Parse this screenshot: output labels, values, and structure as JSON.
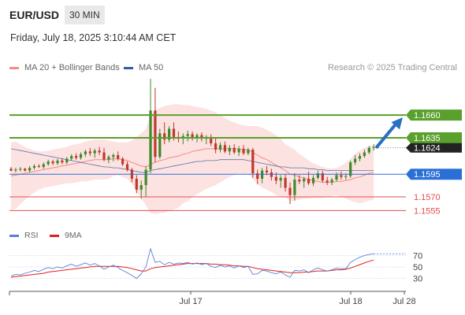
{
  "header": {
    "symbol": "EUR/USD",
    "timeframe": "30 MIN",
    "timestamp": "Friday, July 18, 2025 3:10:44 AM CET"
  },
  "legend": {
    "items": [
      {
        "label": "MA 20 + Bollinger Bands",
        "color": "#f28b82"
      },
      {
        "label": "MA 50",
        "color": "#2d5d9f"
      }
    ],
    "research": "Research © 2025 Trading Central"
  },
  "rsi_legend": {
    "items": [
      {
        "label": "RSI",
        "color": "#5b7fd6"
      },
      {
        "label": "9MA",
        "color": "#e02020"
      }
    ]
  },
  "chart_data": {
    "type": "candlestick",
    "symbol": "EUR/USD",
    "price_axis": {
      "min": 1.1538,
      "max": 1.17
    },
    "current_price": {
      "value": 1.1624,
      "label": "1.1624"
    },
    "levels": [
      {
        "value": 1.166,
        "label": "1.1660",
        "kind": "resistance",
        "color": "#5aa02c",
        "label_bg": true
      },
      {
        "value": 1.1635,
        "label": "1.1635",
        "kind": "resistance",
        "color": "#5aa02c",
        "label_bg": true
      },
      {
        "value": 1.1595,
        "label": "1.1595",
        "kind": "pivot",
        "color": "#2a6fd6",
        "label_bg": true
      },
      {
        "value": 1.157,
        "label": "1.1570",
        "kind": "support",
        "color": "#e34d4d",
        "label_bg": false
      },
      {
        "value": 1.1555,
        "label": "1.1555",
        "kind": "support",
        "color": "#e34d4d",
        "label_bg": false
      }
    ],
    "x_ticks": [
      "Jul 17",
      "Jul 18",
      "Jul 28"
    ],
    "rsi": {
      "ticks": [
        70,
        50,
        30
      ],
      "range": [
        10,
        90
      ]
    },
    "candles": [
      [
        1.1601,
        1.1603,
        1.1598,
        1.1599
      ],
      [
        1.1599,
        1.1602,
        1.1597,
        1.16
      ],
      [
        1.16,
        1.1603,
        1.1598,
        1.1601
      ],
      [
        1.1601,
        1.1602,
        1.1598,
        1.1599
      ],
      [
        1.1599,
        1.1604,
        1.1597,
        1.1602
      ],
      [
        1.1602,
        1.1606,
        1.16,
        1.1604
      ],
      [
        1.1604,
        1.1606,
        1.1602,
        1.1603
      ],
      [
        1.1603,
        1.1608,
        1.1601,
        1.1606
      ],
      [
        1.1606,
        1.1611,
        1.1604,
        1.1609
      ],
      [
        1.1609,
        1.1611,
        1.1605,
        1.1607
      ],
      [
        1.1607,
        1.1612,
        1.1605,
        1.161
      ],
      [
        1.161,
        1.1613,
        1.1606,
        1.1608
      ],
      [
        1.1608,
        1.1614,
        1.1606,
        1.1612
      ],
      [
        1.1612,
        1.1617,
        1.161,
        1.1615
      ],
      [
        1.1615,
        1.1618,
        1.1611,
        1.1613
      ],
      [
        1.1613,
        1.1619,
        1.1611,
        1.1617
      ],
      [
        1.1617,
        1.1622,
        1.1614,
        1.162
      ],
      [
        1.162,
        1.1624,
        1.1615,
        1.1618
      ],
      [
        1.1618,
        1.1623,
        1.1613,
        1.1621
      ],
      [
        1.1621,
        1.1625,
        1.1616,
        1.1619
      ],
      [
        1.1619,
        1.1624,
        1.1609,
        1.1611
      ],
      [
        1.1611,
        1.1616,
        1.1607,
        1.1614
      ],
      [
        1.1614,
        1.1618,
        1.1609,
        1.1616
      ],
      [
        1.1616,
        1.162,
        1.161,
        1.1612
      ],
      [
        1.1612,
        1.1614,
        1.1604,
        1.1606
      ],
      [
        1.1606,
        1.1609,
        1.1598,
        1.16
      ],
      [
        1.16,
        1.1602,
        1.1586,
        1.159
      ],
      [
        1.159,
        1.1594,
        1.1574,
        1.1578
      ],
      [
        1.1578,
        1.1588,
        1.1568,
        1.1583
      ],
      [
        1.1583,
        1.1604,
        1.157,
        1.16
      ],
      [
        1.16,
        1.17,
        1.1596,
        1.1665
      ],
      [
        1.1665,
        1.169,
        1.1608,
        1.1614
      ],
      [
        1.1614,
        1.1645,
        1.1612,
        1.164
      ],
      [
        1.164,
        1.1652,
        1.1628,
        1.1633
      ],
      [
        1.1633,
        1.1648,
        1.163,
        1.1645
      ],
      [
        1.1645,
        1.1652,
        1.1632,
        1.1636
      ],
      [
        1.1636,
        1.1642,
        1.163,
        1.1634
      ],
      [
        1.1634,
        1.164,
        1.1628,
        1.1637
      ],
      [
        1.1637,
        1.1643,
        1.1631,
        1.1639
      ],
      [
        1.1639,
        1.1642,
        1.1632,
        1.1635
      ],
      [
        1.1635,
        1.164,
        1.163,
        1.1638
      ],
      [
        1.1638,
        1.1641,
        1.1631,
        1.1634
      ],
      [
        1.1634,
        1.1638,
        1.1628,
        1.1636
      ],
      [
        1.1636,
        1.1639,
        1.1626,
        1.1629
      ],
      [
        1.1629,
        1.1635,
        1.1618,
        1.1622
      ],
      [
        1.1622,
        1.163,
        1.1619,
        1.1627
      ],
      [
        1.1627,
        1.1631,
        1.1618,
        1.162
      ],
      [
        1.162,
        1.1627,
        1.1616,
        1.1624
      ],
      [
        1.1624,
        1.1628,
        1.1617,
        1.1619
      ],
      [
        1.1619,
        1.1626,
        1.1615,
        1.1623
      ],
      [
        1.1623,
        1.1627,
        1.1616,
        1.1618
      ],
      [
        1.1618,
        1.1624,
        1.1616,
        1.1622
      ],
      [
        1.1622,
        1.1624,
        1.1591,
        1.1596
      ],
      [
        1.1596,
        1.16,
        1.1584,
        1.159
      ],
      [
        1.159,
        1.1602,
        1.1585,
        1.1599
      ],
      [
        1.1599,
        1.1604,
        1.1594,
        1.1597
      ],
      [
        1.1597,
        1.1601,
        1.1588,
        1.1592
      ],
      [
        1.1592,
        1.1597,
        1.1584,
        1.1588
      ],
      [
        1.1588,
        1.1594,
        1.158,
        1.1591
      ],
      [
        1.1591,
        1.1595,
        1.1576,
        1.158
      ],
      [
        1.158,
        1.1586,
        1.1562,
        1.1572
      ],
      [
        1.1572,
        1.1596,
        1.1566,
        1.1589
      ],
      [
        1.1589,
        1.1594,
        1.1584,
        1.1587
      ],
      [
        1.1587,
        1.1592,
        1.158,
        1.159
      ],
      [
        1.159,
        1.1598,
        1.1583,
        1.1585
      ],
      [
        1.1585,
        1.1594,
        1.1582,
        1.1591
      ],
      [
        1.1591,
        1.1599,
        1.1589,
        1.1596
      ],
      [
        1.1596,
        1.1599,
        1.1586,
        1.1588
      ],
      [
        1.1588,
        1.1592,
        1.1583,
        1.1586
      ],
      [
        1.1586,
        1.1591,
        1.1583,
        1.1589
      ],
      [
        1.1589,
        1.1597,
        1.1587,
        1.1594
      ],
      [
        1.1594,
        1.1598,
        1.1589,
        1.1592
      ],
      [
        1.1592,
        1.1596,
        1.1589,
        1.1593
      ],
      [
        1.1593,
        1.161,
        1.1591,
        1.1608
      ],
      [
        1.1608,
        1.1616,
        1.1605,
        1.1612
      ],
      [
        1.1612,
        1.1618,
        1.1609,
        1.1615
      ],
      [
        1.1615,
        1.1622,
        1.1613,
        1.1619
      ],
      [
        1.1619,
        1.1626,
        1.1617,
        1.1624
      ],
      [
        1.1624,
        1.1628,
        1.1621,
        1.1625
      ]
    ],
    "ma20": [
      1.1593,
      1.1594,
      1.1595,
      1.1596,
      1.1597,
      1.1598,
      1.1599,
      1.16,
      1.1601,
      1.1602,
      1.1603,
      1.1604,
      1.1605,
      1.1606,
      1.1607,
      1.1608,
      1.1609,
      1.161,
      1.1611,
      1.1611,
      1.1611,
      1.1611,
      1.1612,
      1.1612,
      1.1611,
      1.161,
      1.1608,
      1.1606,
      1.1604,
      1.1603,
      1.1606,
      1.1608,
      1.161,
      1.1611,
      1.1613,
      1.1614,
      1.1615,
      1.1617,
      1.1618,
      1.162,
      1.1621,
      1.1622,
      1.1623,
      1.1623,
      1.1623,
      1.1623,
      1.1623,
      1.1623,
      1.1623,
      1.1623,
      1.1622,
      1.1622,
      1.1619,
      1.1616,
      1.1613,
      1.1611,
      1.1608,
      1.1605,
      1.1602,
      1.1599,
      1.1595,
      1.1594,
      1.1592,
      1.1591,
      1.1589,
      1.1588,
      1.1587,
      1.1586,
      1.1586,
      1.1586,
      1.1587,
      1.1587,
      1.1588,
      1.1589,
      1.1591,
      1.1592,
      1.1594,
      1.1596,
      1.1597
    ],
    "band_upper": [
      1.163,
      1.1631,
      1.1628,
      1.1625,
      1.1623,
      1.1621,
      1.162,
      1.162,
      1.1621,
      1.1622,
      1.1623,
      1.1624,
      1.1625,
      1.1627,
      1.1628,
      1.1629,
      1.1631,
      1.1632,
      1.1633,
      1.1633,
      1.1633,
      1.1632,
      1.1631,
      1.163,
      1.163,
      1.163,
      1.1632,
      1.1636,
      1.164,
      1.1645,
      1.166,
      1.1665,
      1.1668,
      1.167,
      1.1671,
      1.1672,
      1.1672,
      1.1671,
      1.1671,
      1.167,
      1.1669,
      1.1668,
      1.1667,
      1.1665,
      1.1663,
      1.166,
      1.1657,
      1.1654,
      1.1652,
      1.165,
      1.1649,
      1.1648,
      1.1648,
      1.1648,
      1.1646,
      1.1644,
      1.1641,
      1.1638,
      1.1634,
      1.1628,
      1.1625,
      1.1622,
      1.1617,
      1.1614,
      1.161,
      1.1607,
      1.1605,
      1.1603,
      1.1602,
      1.1601,
      1.1602,
      1.1604,
      1.1608,
      1.1612,
      1.1618,
      1.1621,
      1.1624,
      1.1626,
      1.1627
    ],
    "band_lower": [
      1.1556,
      1.1557,
      1.1562,
      1.1567,
      1.1571,
      1.1575,
      1.1578,
      1.158,
      1.1581,
      1.1582,
      1.1583,
      1.1584,
      1.1585,
      1.1585,
      1.1586,
      1.1587,
      1.1587,
      1.1588,
      1.1589,
      1.1589,
      1.1589,
      1.159,
      1.1593,
      1.1594,
      1.1592,
      1.159,
      1.1584,
      1.1576,
      1.1568,
      1.1561,
      1.1552,
      1.1551,
      1.1552,
      1.1552,
      1.1555,
      1.1556,
      1.1558,
      1.1563,
      1.1565,
      1.157,
      1.1573,
      1.1576,
      1.1579,
      1.1581,
      1.1583,
      1.1586,
      1.1589,
      1.1592,
      1.1594,
      1.1596,
      1.1595,
      1.1596,
      1.159,
      1.1584,
      1.158,
      1.1578,
      1.1575,
      1.1572,
      1.157,
      1.157,
      1.1565,
      1.1566,
      1.1567,
      1.1568,
      1.1568,
      1.1569,
      1.1569,
      1.1569,
      1.157,
      1.1571,
      1.1572,
      1.157,
      1.1568,
      1.1566,
      1.1564,
      1.1563,
      1.1564,
      1.1566,
      1.1567
    ],
    "ma50": [
      1.1623,
      1.1622,
      1.1621,
      1.162,
      1.1619,
      1.1618,
      1.1617,
      1.1616,
      1.1615,
      1.1614,
      1.1613,
      1.1612,
      1.1611,
      1.161,
      1.1609,
      1.1608,
      1.1607,
      1.1606,
      1.1605,
      1.1604,
      1.1603,
      1.1603,
      1.1602,
      1.1602,
      1.1601,
      1.16,
      1.1599,
      1.1598,
      1.1597,
      1.1597,
      1.1599,
      1.16,
      1.1601,
      1.1602,
      1.1603,
      1.1604,
      1.1605,
      1.1606,
      1.1607,
      1.1608,
      1.1609,
      1.1609,
      1.161,
      1.161,
      1.161,
      1.1611,
      1.1611,
      1.1611,
      1.1611,
      1.1611,
      1.1611,
      1.161,
      1.1609,
      1.1608,
      1.1607,
      1.1606,
      1.1605,
      1.1604,
      1.1603,
      1.1603,
      1.1602,
      1.1602,
      1.1602,
      1.1602,
      1.1601,
      1.1601,
      1.16,
      1.16,
      1.1599,
      1.1599,
      1.1599,
      1.1599,
      1.1599,
      1.1599,
      1.1599,
      1.1599,
      1.1599,
      1.1599,
      1.1599
    ],
    "rsi_values": [
      34,
      37,
      36,
      39,
      41,
      44,
      42,
      46,
      49,
      47,
      50,
      48,
      52,
      55,
      51,
      54,
      57,
      53,
      56,
      52,
      46,
      50,
      53,
      49,
      44,
      40,
      35,
      30,
      38,
      50,
      82,
      58,
      60,
      54,
      58,
      55,
      57,
      56,
      58,
      55,
      57,
      54,
      56,
      51,
      49,
      53,
      50,
      52,
      48,
      52,
      49,
      51,
      37,
      38,
      44,
      43,
      40,
      38,
      41,
      36,
      32,
      44,
      43,
      45,
      40,
      45,
      48,
      45,
      43,
      45,
      48,
      47,
      47,
      58,
      63,
      67,
      70,
      72,
      73
    ],
    "rsi_ma": [
      32,
      33,
      34,
      35,
      36,
      37,
      38,
      39,
      41,
      42,
      43,
      44,
      45,
      46,
      47,
      48,
      49,
      50,
      51,
      51,
      51,
      51,
      51,
      51,
      50,
      49,
      47,
      45,
      43,
      43,
      47,
      49,
      50,
      51,
      52,
      53,
      54,
      55,
      56,
      56,
      56,
      56,
      56,
      55,
      55,
      54,
      54,
      53,
      52,
      52,
      51,
      51,
      49,
      47,
      46,
      45,
      44,
      43,
      42,
      41,
      40,
      40,
      40,
      41,
      41,
      42,
      43,
      43,
      43,
      44,
      45,
      45,
      46,
      48,
      51,
      54,
      57,
      60,
      62
    ],
    "projection": {
      "from_index": 78,
      "to_price": 1.166
    }
  }
}
